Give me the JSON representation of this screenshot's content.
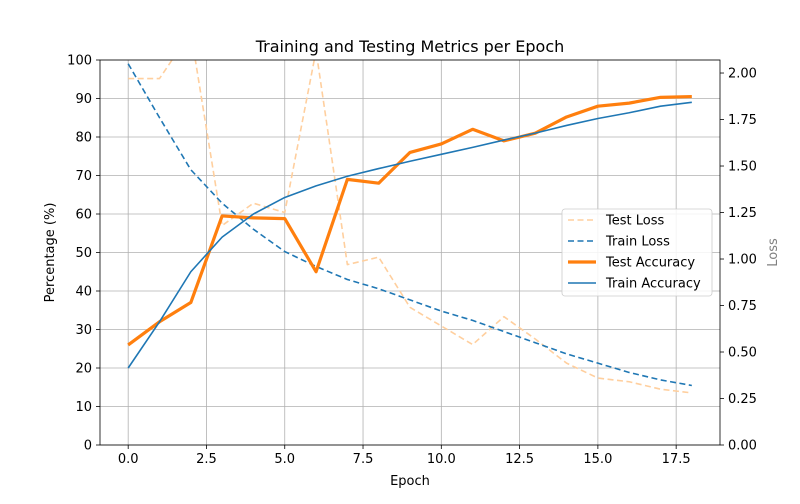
{
  "chart_data": {
    "type": "line",
    "title": "Training and Testing Metrics per Epoch",
    "xlabel": "Epoch",
    "ylabel": "Percentage (%)",
    "y2label": "Loss",
    "xlim": [
      -0.9,
      18.9
    ],
    "ylim": [
      0,
      100
    ],
    "y2lim": [
      0,
      2.07
    ],
    "xticks": [
      "0.0",
      "2.5",
      "5.0",
      "7.5",
      "10.0",
      "12.5",
      "15.0",
      "17.5"
    ],
    "yticks": [
      "0",
      "10",
      "20",
      "30",
      "40",
      "50",
      "60",
      "70",
      "80",
      "90",
      "100"
    ],
    "y2ticks": [
      "0.00",
      "0.25",
      "0.50",
      "0.75",
      "1.00",
      "1.25",
      "1.50",
      "1.75",
      "2.00"
    ],
    "grid": true,
    "legend_position": "center-right",
    "colors": {
      "test_loss": "#ffcf9e",
      "train_loss": "#1f77b4",
      "test_accuracy": "#ff7f0e",
      "train_accuracy": "#1f77b4",
      "y2label": "#808080"
    },
    "x": [
      0,
      1,
      2,
      3,
      4,
      5,
      6,
      7,
      8,
      9,
      10,
      11,
      12,
      13,
      14,
      15,
      16,
      17,
      18
    ],
    "series": [
      {
        "name": "Test Loss",
        "axis": "right",
        "style": "dashed-light",
        "values": [
          1.97,
          1.97,
          2.22,
          1.18,
          1.3,
          1.25,
          2.12,
          0.97,
          1.01,
          0.74,
          0.64,
          0.54,
          0.69,
          0.57,
          0.44,
          0.36,
          0.34,
          0.3,
          0.28
        ]
      },
      {
        "name": "Train Loss",
        "axis": "right",
        "style": "dashed",
        "values": [
          2.05,
          1.76,
          1.48,
          1.3,
          1.16,
          1.04,
          0.96,
          0.89,
          0.84,
          0.78,
          0.72,
          0.67,
          0.61,
          0.55,
          0.49,
          0.44,
          0.39,
          0.35,
          0.32
        ]
      },
      {
        "name": "Test Accuracy",
        "axis": "left",
        "style": "thick",
        "values": [
          26,
          32,
          37,
          59.5,
          59,
          58.8,
          45,
          69,
          68,
          76,
          78.2,
          82,
          79,
          81,
          85.2,
          88,
          88.8,
          90.3,
          90.5
        ]
      },
      {
        "name": "Train Accuracy",
        "axis": "left",
        "style": "solid",
        "values": [
          20,
          32,
          45,
          54,
          60,
          64.3,
          67.3,
          69.8,
          71.8,
          73.7,
          75.5,
          77.3,
          79.2,
          81,
          83,
          84.8,
          86.3,
          88,
          89
        ]
      }
    ]
  }
}
